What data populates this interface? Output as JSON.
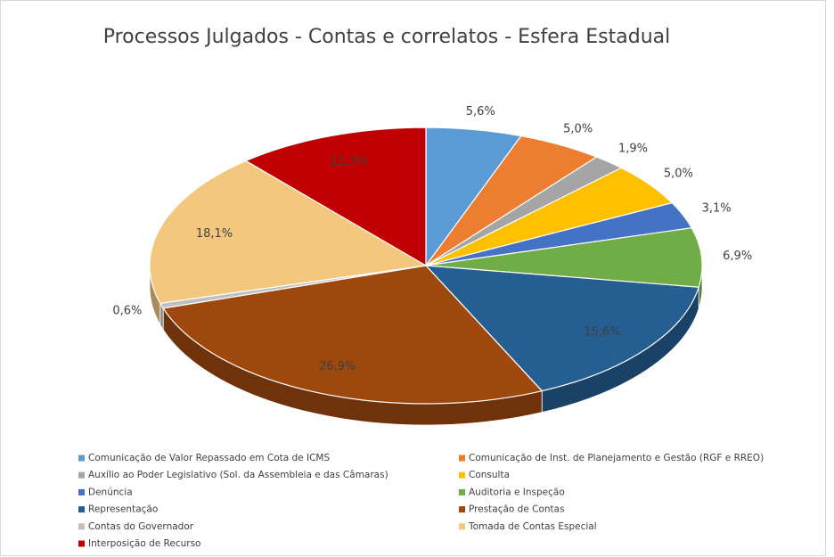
{
  "chart_data": {
    "type": "pie3d",
    "title": "Processos Julgados - Contas e correlatos - Esfera Estadual",
    "categories": [
      "Comunicação de Valor Repassado em Cota de ICMS",
      "Comunicação de Inst. de Planejamento e Gestão (RGF e RREO)",
      "Auxílio ao Poder Legislativo (Sol. da Assembleia e das Câmaras)",
      "Consulta",
      "Denúncia",
      "Auditoria e Inspeção",
      "Representação",
      "Prestação de Contas",
      "Contas do Governador",
      "Tomada de Contas Especial",
      "Interposição de Recurso"
    ],
    "values": [
      5.6,
      5.0,
      1.9,
      5.0,
      3.1,
      6.9,
      15.6,
      26.9,
      0.6,
      18.1,
      11.3
    ],
    "value_labels": [
      "5,6%",
      "5,0%",
      "1,9%",
      "5,0%",
      "3,1%",
      "6,9%",
      "15,6%",
      "26,9%",
      "0,6%",
      "18,1%",
      "11,3%"
    ],
    "colors": [
      "#5b9bd5",
      "#ed7d31",
      "#a5a5a5",
      "#ffc000",
      "#4472c4",
      "#70ad47",
      "#255e91",
      "#9e480e",
      "#bfbfbf",
      "#f4c77f",
      "#c00000"
    ],
    "legend": "bottom"
  }
}
